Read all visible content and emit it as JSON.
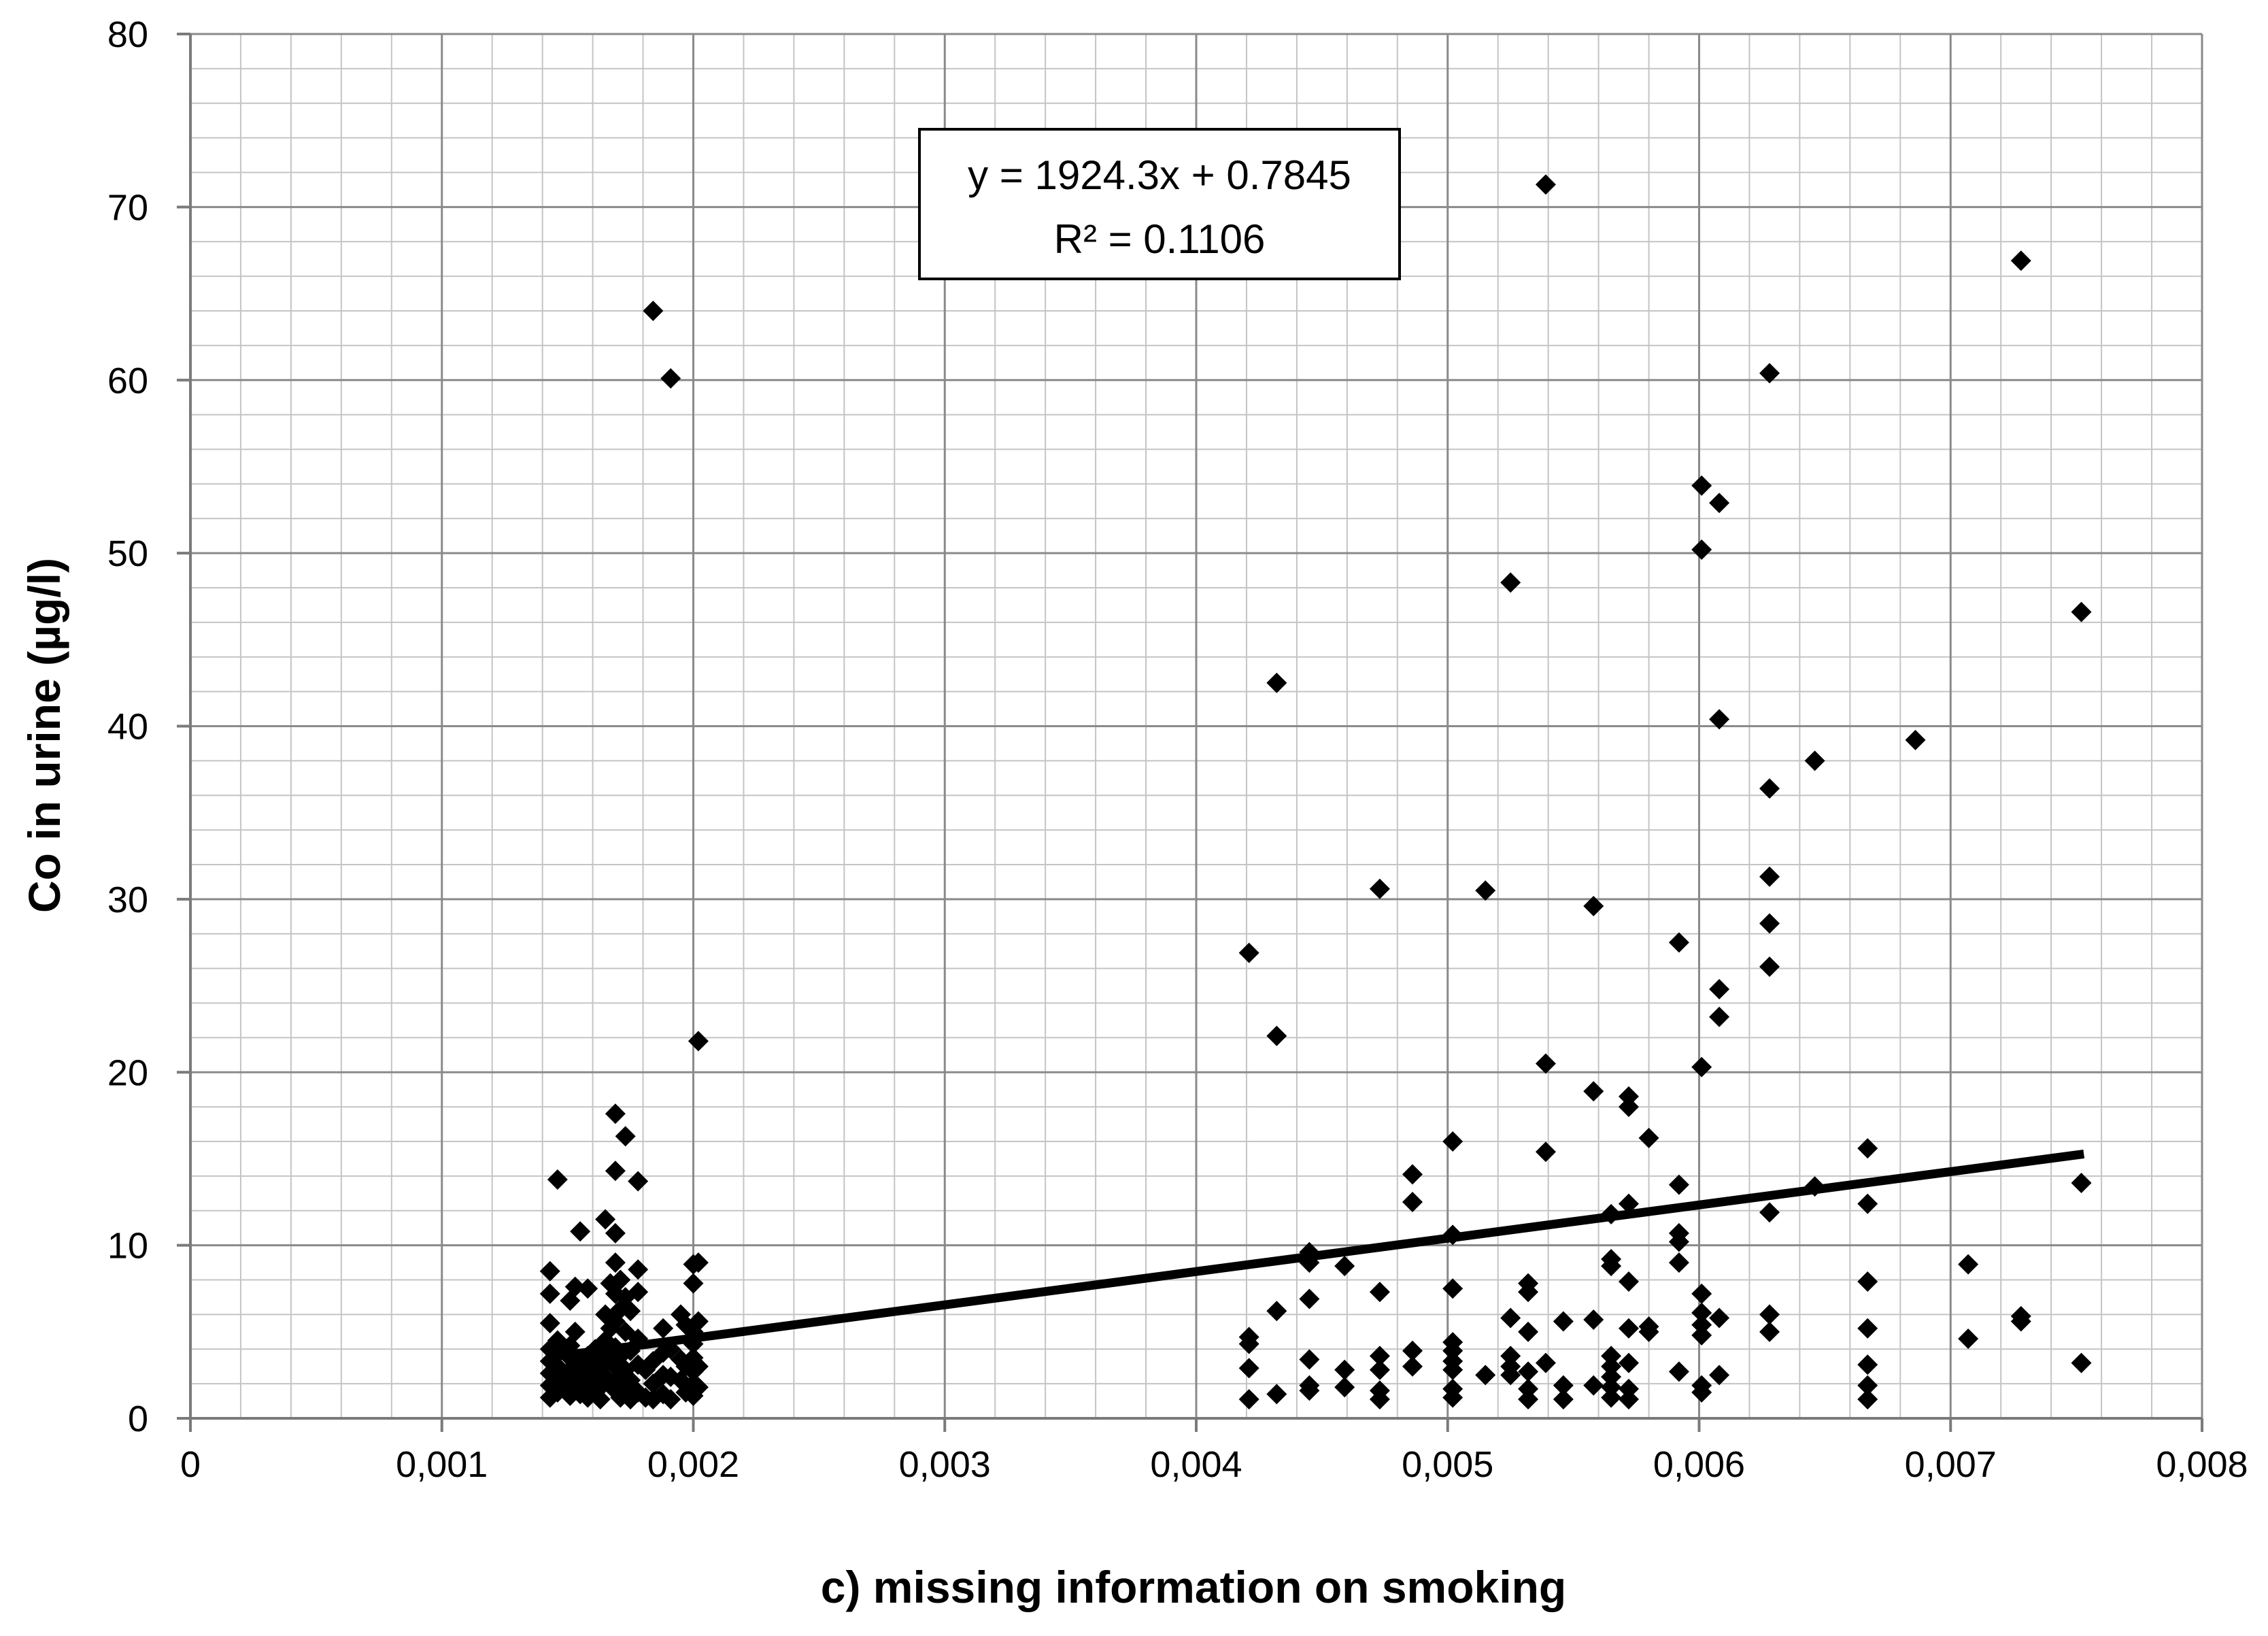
{
  "chart_data": {
    "type": "scatter",
    "title": "",
    "xlabel": "c) missing information on smoking",
    "ylabel": "Co in urine (µg/l)",
    "xlim": [
      0,
      0.008
    ],
    "ylim": [
      0,
      80
    ],
    "x_major_step": 0.001,
    "y_major_step": 10,
    "x_minor_per_major": 5,
    "y_minor_per_major": 5,
    "grid": true,
    "x_tick_labels": [
      "0",
      "0,001",
      "0,002",
      "0,003",
      "0,004",
      "0,005",
      "0,006",
      "0,007",
      "0,008"
    ],
    "y_tick_labels": [
      "0",
      "10",
      "20",
      "30",
      "40",
      "50",
      "60",
      "70",
      "80"
    ],
    "annotation": {
      "equation": "y = 1924.3x + 0.7845",
      "r_squared": "R² = 0.1106"
    },
    "trendline": {
      "slope": 1924.3,
      "intercept": 0.7845,
      "x_range": [
        0.00143,
        0.00753
      ]
    },
    "series": [
      {
        "name": "Co in urine",
        "marker": "diamond",
        "color": "#000000",
        "points": [
          [
            0.00143,
            8.5
          ],
          [
            0.00143,
            7.2
          ],
          [
            0.00143,
            5.5
          ],
          [
            0.00143,
            4.0
          ],
          [
            0.00143,
            3.3
          ],
          [
            0.00143,
            2.6
          ],
          [
            0.00143,
            1.9
          ],
          [
            0.00143,
            1.2
          ],
          [
            0.00146,
            13.8
          ],
          [
            0.00146,
            4.5
          ],
          [
            0.00146,
            3.0
          ],
          [
            0.00146,
            2.2
          ],
          [
            0.00146,
            1.5
          ],
          [
            0.00149,
            3.8
          ],
          [
            0.00149,
            2.5
          ],
          [
            0.00149,
            1.8
          ],
          [
            0.00151,
            6.8
          ],
          [
            0.00151,
            4.2
          ],
          [
            0.00151,
            3.5
          ],
          [
            0.00151,
            2.8
          ],
          [
            0.00151,
            2.0
          ],
          [
            0.00151,
            1.3
          ],
          [
            0.00153,
            7.6
          ],
          [
            0.00153,
            5.0
          ],
          [
            0.00153,
            3.2
          ],
          [
            0.00153,
            2.4
          ],
          [
            0.00153,
            1.6
          ],
          [
            0.00155,
            10.8
          ],
          [
            0.00155,
            3.0
          ],
          [
            0.00155,
            2.1
          ],
          [
            0.00155,
            1.4
          ],
          [
            0.00158,
            7.5
          ],
          [
            0.00158,
            3.6
          ],
          [
            0.00158,
            2.7
          ],
          [
            0.00158,
            1.9
          ],
          [
            0.00158,
            1.2
          ],
          [
            0.00161,
            4.0
          ],
          [
            0.00161,
            3.0
          ],
          [
            0.00161,
            2.2
          ],
          [
            0.00161,
            1.5
          ],
          [
            0.00163,
            3.8
          ],
          [
            0.00163,
            2.6
          ],
          [
            0.00163,
            1.8
          ],
          [
            0.00163,
            1.1
          ],
          [
            0.00165,
            11.5
          ],
          [
            0.00165,
            6.0
          ],
          [
            0.00165,
            4.5
          ],
          [
            0.00165,
            3.2
          ],
          [
            0.00165,
            2.4
          ],
          [
            0.00167,
            7.8
          ],
          [
            0.00167,
            5.2
          ],
          [
            0.00167,
            3.5
          ],
          [
            0.00167,
            2.0
          ],
          [
            0.00169,
            17.6
          ],
          [
            0.00169,
            14.3
          ],
          [
            0.00169,
            10.7
          ],
          [
            0.00169,
            9.0
          ],
          [
            0.00169,
            7.2
          ],
          [
            0.00169,
            5.6
          ],
          [
            0.00169,
            4.1
          ],
          [
            0.00169,
            3.0
          ],
          [
            0.00169,
            1.6
          ],
          [
            0.00171,
            8.0
          ],
          [
            0.00171,
            6.3
          ],
          [
            0.00171,
            3.6
          ],
          [
            0.00171,
            2.5
          ],
          [
            0.00171,
            1.2
          ],
          [
            0.00173,
            16.3
          ],
          [
            0.00173,
            7.0
          ],
          [
            0.00173,
            5.0
          ],
          [
            0.00173,
            2.8
          ],
          [
            0.00173,
            1.8
          ],
          [
            0.00175,
            6.2
          ],
          [
            0.00175,
            3.9
          ],
          [
            0.00175,
            2.2
          ],
          [
            0.00175,
            1.1
          ],
          [
            0.00178,
            13.7
          ],
          [
            0.00178,
            8.6
          ],
          [
            0.00178,
            7.3
          ],
          [
            0.00178,
            4.6
          ],
          [
            0.00178,
            3.1
          ],
          [
            0.00178,
            1.5
          ],
          [
            0.00181,
            2.8
          ],
          [
            0.00181,
            1.2
          ],
          [
            0.00184,
            64.0
          ],
          [
            0.00184,
            3.3
          ],
          [
            0.00184,
            2.0
          ],
          [
            0.00184,
            1.1
          ],
          [
            0.00188,
            5.2
          ],
          [
            0.00188,
            3.8
          ],
          [
            0.00188,
            2.5
          ],
          [
            0.00188,
            1.4
          ],
          [
            0.00191,
            60.1
          ],
          [
            0.00191,
            4.0
          ],
          [
            0.00191,
            2.4
          ],
          [
            0.00191,
            1.1
          ],
          [
            0.00195,
            6.0
          ],
          [
            0.00195,
            3.4
          ],
          [
            0.00195,
            2.2
          ],
          [
            0.00197,
            5.4
          ],
          [
            0.00197,
            3.0
          ],
          [
            0.00197,
            1.5
          ],
          [
            0.002,
            8.9
          ],
          [
            0.002,
            7.8
          ],
          [
            0.002,
            5.0
          ],
          [
            0.002,
            4.3
          ],
          [
            0.002,
            3.5
          ],
          [
            0.002,
            2.7
          ],
          [
            0.002,
            2.0
          ],
          [
            0.002,
            1.3
          ],
          [
            0.00202,
            21.8
          ],
          [
            0.00202,
            9.0
          ],
          [
            0.00202,
            5.6
          ],
          [
            0.00202,
            3.0
          ],
          [
            0.00202,
            1.8
          ],
          [
            0.00421,
            26.9
          ],
          [
            0.00421,
            4.7
          ],
          [
            0.00421,
            4.3
          ],
          [
            0.00421,
            2.9
          ],
          [
            0.00421,
            1.1
          ],
          [
            0.00432,
            42.5
          ],
          [
            0.00432,
            22.1
          ],
          [
            0.00432,
            6.2
          ],
          [
            0.00432,
            1.4
          ],
          [
            0.00445,
            9.6
          ],
          [
            0.00445,
            9.0
          ],
          [
            0.00445,
            6.9
          ],
          [
            0.00445,
            3.4
          ],
          [
            0.00445,
            1.9
          ],
          [
            0.00445,
            1.6
          ],
          [
            0.00459,
            8.8
          ],
          [
            0.00459,
            2.8
          ],
          [
            0.00459,
            1.8
          ],
          [
            0.00473,
            30.6
          ],
          [
            0.00473,
            7.3
          ],
          [
            0.00473,
            3.6
          ],
          [
            0.00473,
            2.8
          ],
          [
            0.00473,
            1.6
          ],
          [
            0.00473,
            1.1
          ],
          [
            0.00486,
            14.1
          ],
          [
            0.00486,
            12.5
          ],
          [
            0.00486,
            3.9
          ],
          [
            0.00486,
            3.0
          ],
          [
            0.00502,
            16.0
          ],
          [
            0.00502,
            10.6
          ],
          [
            0.00502,
            7.5
          ],
          [
            0.00502,
            4.4
          ],
          [
            0.00502,
            3.9
          ],
          [
            0.00502,
            3.3
          ],
          [
            0.00502,
            2.8
          ],
          [
            0.00502,
            1.7
          ],
          [
            0.00502,
            1.2
          ],
          [
            0.00515,
            30.5
          ],
          [
            0.00515,
            2.5
          ],
          [
            0.00525,
            48.3
          ],
          [
            0.00525,
            5.8
          ],
          [
            0.00525,
            3.6
          ],
          [
            0.00525,
            3.0
          ],
          [
            0.00525,
            2.5
          ],
          [
            0.00532,
            7.8
          ],
          [
            0.00532,
            7.3
          ],
          [
            0.00532,
            5.0
          ],
          [
            0.00532,
            2.7
          ],
          [
            0.00532,
            1.7
          ],
          [
            0.00532,
            1.1
          ],
          [
            0.00539,
            71.3
          ],
          [
            0.00539,
            20.5
          ],
          [
            0.00539,
            15.4
          ],
          [
            0.00539,
            3.2
          ],
          [
            0.00546,
            5.6
          ],
          [
            0.00546,
            1.9
          ],
          [
            0.00546,
            1.1
          ],
          [
            0.00558,
            29.6
          ],
          [
            0.00558,
            18.9
          ],
          [
            0.00558,
            5.7
          ],
          [
            0.00558,
            1.9
          ],
          [
            0.00565,
            11.8
          ],
          [
            0.00565,
            9.2
          ],
          [
            0.00565,
            8.8
          ],
          [
            0.00565,
            3.6
          ],
          [
            0.00565,
            3.0
          ],
          [
            0.00565,
            2.4
          ],
          [
            0.00565,
            1.8
          ],
          [
            0.00565,
            1.2
          ],
          [
            0.00572,
            18.6
          ],
          [
            0.00572,
            18.0
          ],
          [
            0.00572,
            12.4
          ],
          [
            0.00572,
            7.9
          ],
          [
            0.00572,
            5.2
          ],
          [
            0.00572,
            3.2
          ],
          [
            0.00572,
            1.7
          ],
          [
            0.00572,
            1.1
          ],
          [
            0.0058,
            16.2
          ],
          [
            0.0058,
            5.3
          ],
          [
            0.0058,
            5.0
          ],
          [
            0.00592,
            27.5
          ],
          [
            0.00592,
            13.5
          ],
          [
            0.00592,
            10.7
          ],
          [
            0.00592,
            10.2
          ],
          [
            0.00592,
            9.0
          ],
          [
            0.00592,
            2.7
          ],
          [
            0.00601,
            53.9
          ],
          [
            0.00601,
            50.2
          ],
          [
            0.00601,
            20.3
          ],
          [
            0.00601,
            7.2
          ],
          [
            0.00601,
            6.1
          ],
          [
            0.00601,
            5.4
          ],
          [
            0.00601,
            4.8
          ],
          [
            0.00601,
            1.9
          ],
          [
            0.00601,
            1.5
          ],
          [
            0.00608,
            52.9
          ],
          [
            0.00608,
            40.4
          ],
          [
            0.00608,
            24.8
          ],
          [
            0.00608,
            23.2
          ],
          [
            0.00608,
            5.8
          ],
          [
            0.00608,
            2.5
          ],
          [
            0.00628,
            60.4
          ],
          [
            0.00628,
            36.4
          ],
          [
            0.00628,
            31.3
          ],
          [
            0.00628,
            28.6
          ],
          [
            0.00628,
            26.1
          ],
          [
            0.00628,
            11.9
          ],
          [
            0.00628,
            6.0
          ],
          [
            0.00628,
            5.0
          ],
          [
            0.00646,
            38.0
          ],
          [
            0.00646,
            13.4
          ],
          [
            0.00667,
            15.6
          ],
          [
            0.00667,
            12.4
          ],
          [
            0.00667,
            7.9
          ],
          [
            0.00667,
            5.2
          ],
          [
            0.00667,
            3.1
          ],
          [
            0.00667,
            1.9
          ],
          [
            0.00667,
            1.1
          ],
          [
            0.00686,
            39.2
          ],
          [
            0.00707,
            8.9
          ],
          [
            0.00707,
            4.6
          ],
          [
            0.00728,
            66.9
          ],
          [
            0.00728,
            5.9
          ],
          [
            0.00728,
            5.6
          ],
          [
            0.00752,
            46.6
          ],
          [
            0.00752,
            13.6
          ],
          [
            0.00752,
            3.2
          ]
        ]
      }
    ]
  }
}
